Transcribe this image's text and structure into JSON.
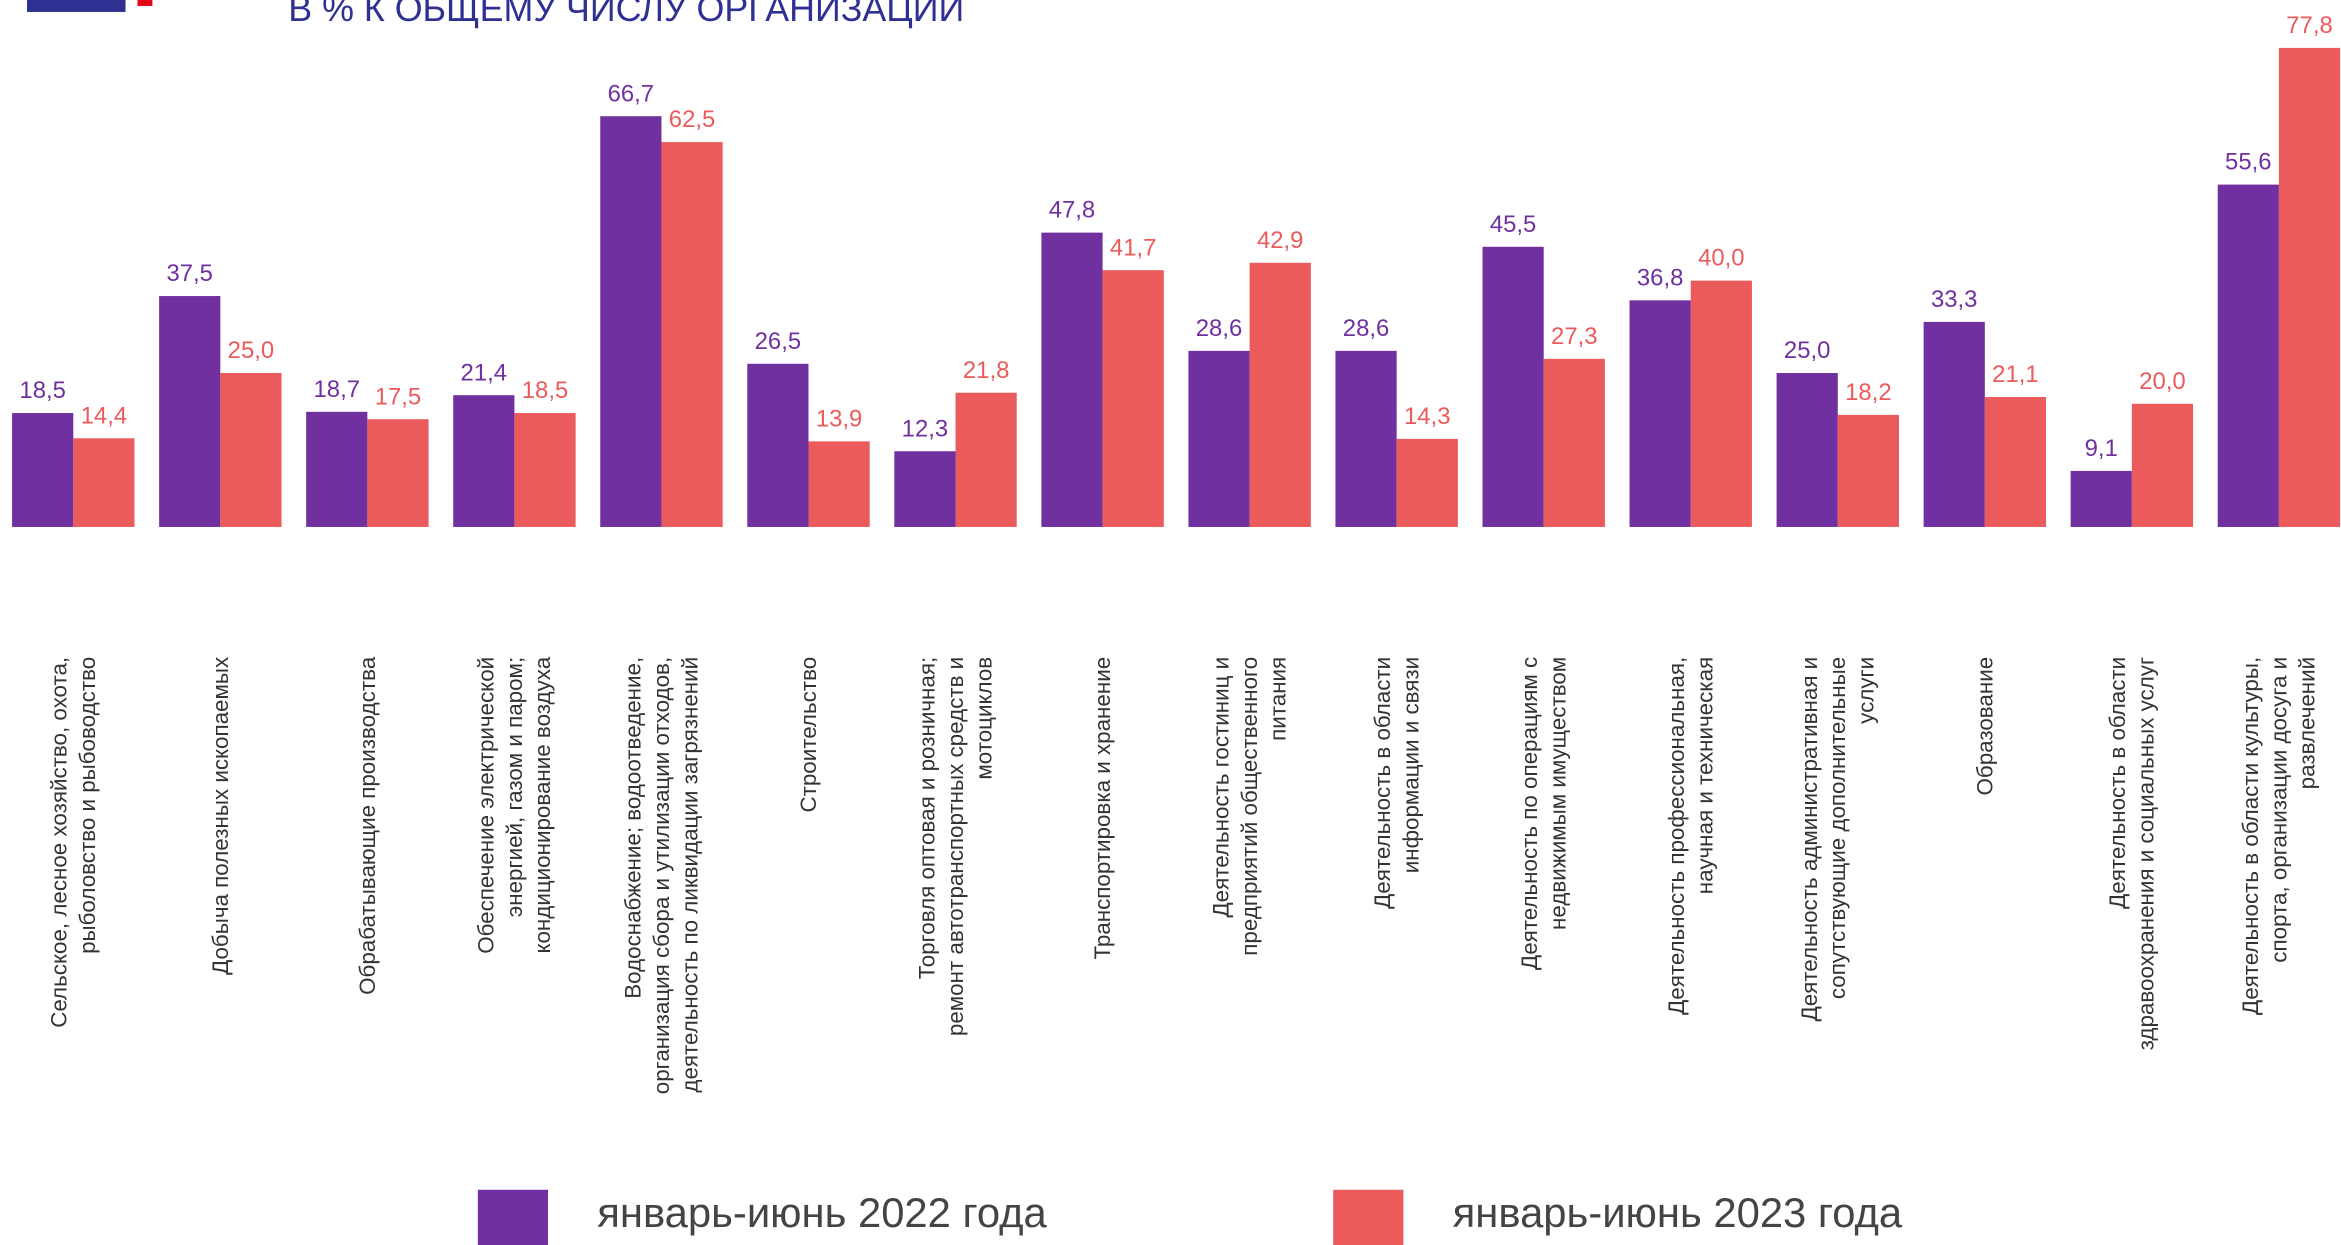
{
  "chart_data": {
    "type": "bar",
    "title": "В % К ОБЩЕМУ ЧИСЛУ ОРГАНИЗАЦИЙ",
    "categories": [
      [
        "Сельское, лесное хозяйство, охота,",
        "рыболовство и рыбоводство"
      ],
      [
        "Добыча полезных ископаемых"
      ],
      [
        "Обрабатывающие производства"
      ],
      [
        "Обеспечение электрической",
        "энергией, газом и паром;",
        "кондиционирование воздуха"
      ],
      [
        "Водоснабжение; водоотведение,",
        "организация сбора и утилизации отходов,",
        "деятельность по ликвидации загрязнений"
      ],
      [
        "Строительство"
      ],
      [
        "Торговля оптовая и розничная;",
        "ремонт автотранспортных средств и",
        "мотоциклов"
      ],
      [
        "Транспортировка и хранение"
      ],
      [
        "Деятельность гостиниц и",
        "предприятий общественного",
        "питания"
      ],
      [
        "Деятельность в области",
        "информации и связи"
      ],
      [
        "Деятельность по операциям  с",
        "недвижимым имуществом"
      ],
      [
        "Деятельность профессиональная,",
        "научная и техническая"
      ],
      [
        "Деятельность административная и",
        "сопутствующие дополнительные",
        "услуги"
      ],
      [
        "Образование"
      ],
      [
        "Деятельность в области",
        "здравоохранения и социальных услуг"
      ],
      [
        "Деятельность в области культуры,",
        "спорта, организации досуга и",
        "развлечений"
      ]
    ],
    "series": [
      {
        "name": "январь-июнь 2022 года",
        "color": "#7030a0",
        "values": [
          18.5,
          37.5,
          18.7,
          21.4,
          66.7,
          26.5,
          12.3,
          47.8,
          28.6,
          28.6,
          45.5,
          36.8,
          25.0,
          33.3,
          9.1,
          55.6
        ],
        "value_labels": [
          "18,5",
          "37,5",
          "18,7",
          "21,4",
          "66,7",
          "26,5",
          "12,3",
          "47,8",
          "28,6",
          "28,6",
          "45,5",
          "36,8",
          "25,0",
          "33,3",
          "9,1",
          "55,6"
        ]
      },
      {
        "name": "январь-июнь 2023 года",
        "color": "#eb5b5b",
        "values": [
          14.4,
          25.0,
          17.5,
          18.5,
          62.5,
          13.9,
          21.8,
          41.7,
          42.9,
          14.3,
          27.3,
          40.0,
          18.2,
          21.1,
          20.0,
          77.8
        ],
        "value_labels": [
          "14,4",
          "25,0",
          "17,5",
          "18,5",
          "62,5",
          "13,9",
          "21,8",
          "41,7",
          "42,9",
          "14,3",
          "27,3",
          "40,0",
          "18,2",
          "21,1",
          "20,0",
          "77,8"
        ]
      }
    ],
    "ylim": [
      0,
      80
    ]
  }
}
